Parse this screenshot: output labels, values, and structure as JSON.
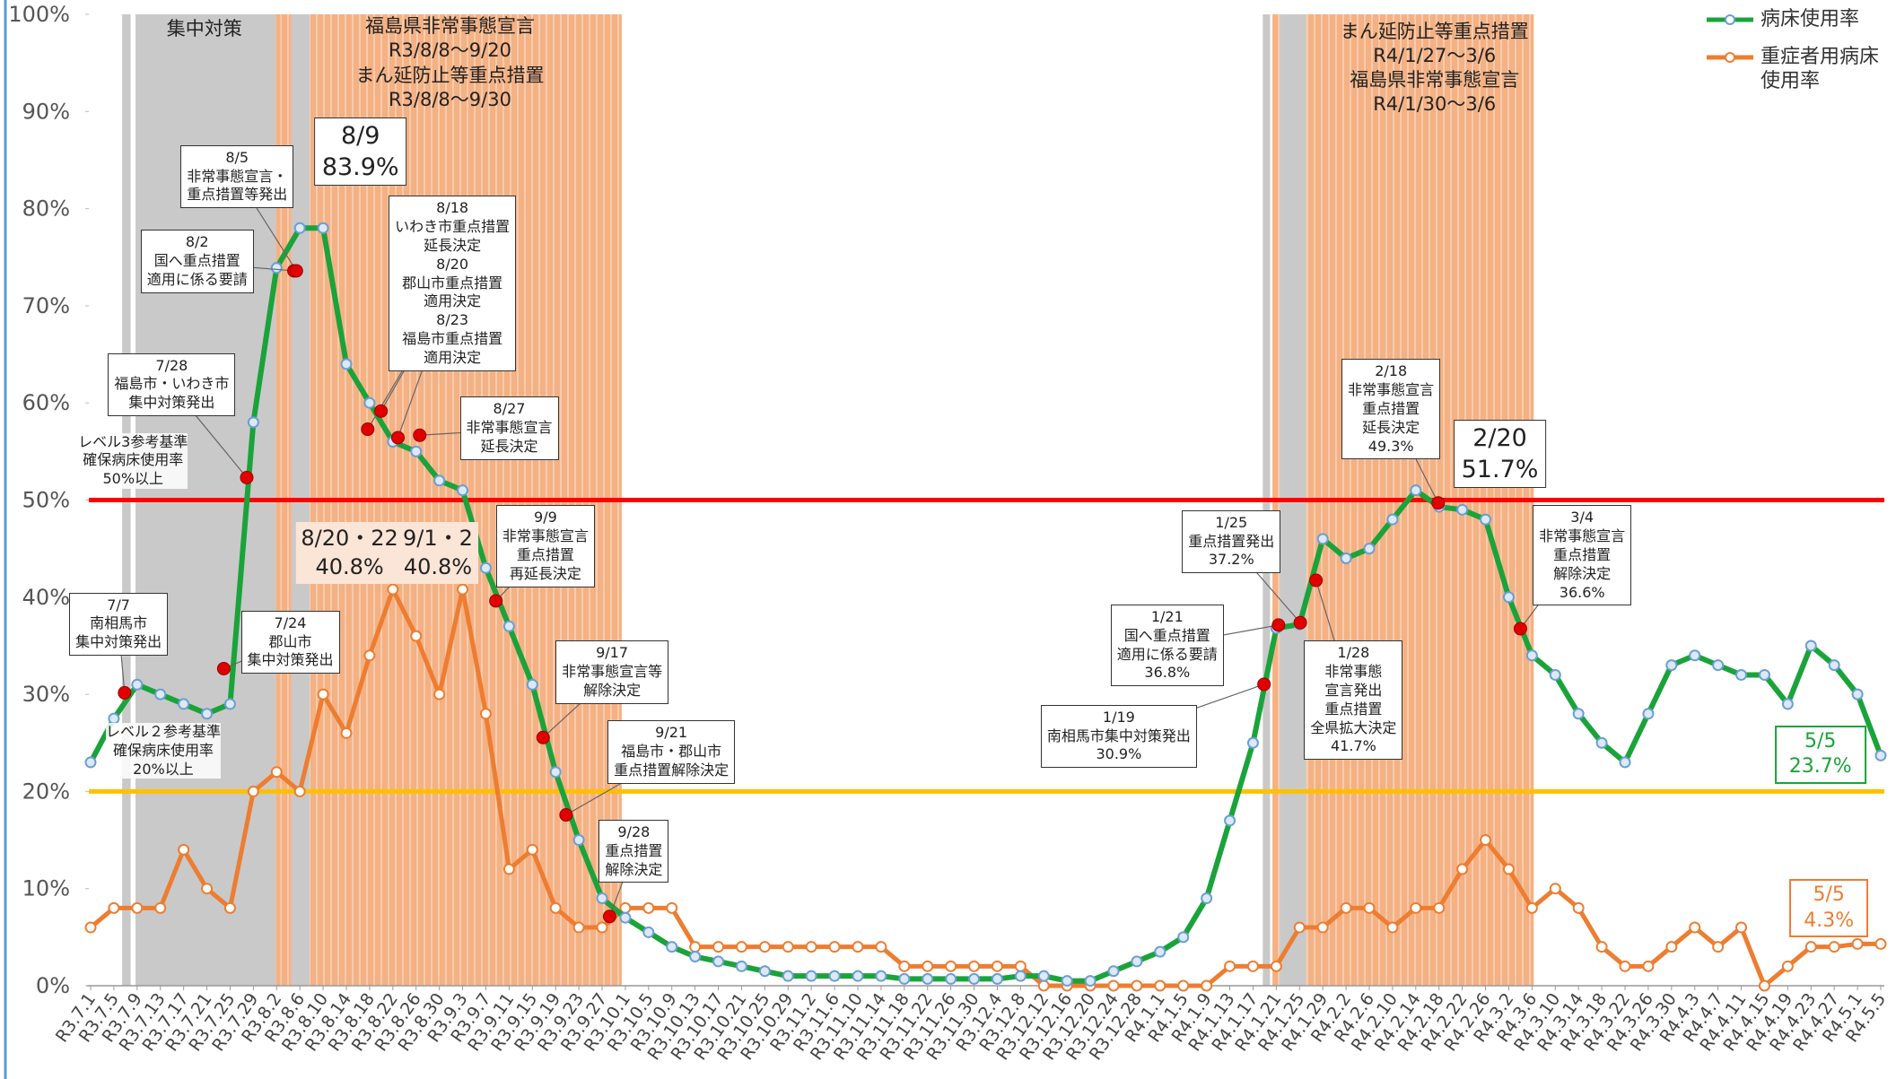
{
  "chart_data": {
    "type": "line",
    "categories": [
      "R3.7.1",
      "R3.7.5",
      "R3.7.9",
      "R3.7.13",
      "R3.7.17",
      "R3.7.21",
      "R3.7.25",
      "R3.7.29",
      "R3.8.2",
      "R3.8.6",
      "R3.8.10",
      "R3.8.14",
      "R3.8.18",
      "R3.8.22",
      "R3.8.26",
      "R3.8.30",
      "R3.9.3",
      "R3.9.7",
      "R3.9.11",
      "R3.9.15",
      "R3.9.19",
      "R3.9.23",
      "R3.9.27",
      "R3.10.1",
      "R3.10.5",
      "R3.10.9",
      "R3.10.13",
      "R3.10.17",
      "R3.10.21",
      "R3.10.25",
      "R3.10.29",
      "R3.11.2",
      "R3.11.6",
      "R3.11.10",
      "R3.11.14",
      "R3.11.18",
      "R3.11.22",
      "R3.11.26",
      "R3.11.30",
      "R3.12.4",
      "R3.12.8",
      "R3.12.12",
      "R3.12.16",
      "R3.12.20",
      "R3.12.24",
      "R3.12.28",
      "R4.1.1",
      "R4.1.5",
      "R4.1.9",
      "R4.1.13",
      "R4.1.17",
      "R4.1.21",
      "R4.1.25",
      "R4.1.29",
      "R4.2.2",
      "R4.2.6",
      "R4.2.10",
      "R4.2.14",
      "R4.2.18",
      "R4.2.22",
      "R4.2.26",
      "R4.3.2",
      "R4.3.6",
      "R4.3.10",
      "R4.3.14",
      "R4.3.18",
      "R4.3.22",
      "R4.3.26",
      "R4.3.30",
      "R4.4.3",
      "R4.4.7",
      "R4.4.11",
      "R4.4.15",
      "R4.4.19",
      "R4.4.23",
      "R4.4.27",
      "R4.5.1",
      "R4.5.5"
    ],
    "series": [
      {
        "name": "病床使用率",
        "color": "#1aa33a",
        "marker_color": "#6a9fd4",
        "values": [
          23,
          27.5,
          31,
          30,
          29,
          28,
          29,
          58,
          73.9,
          78,
          78,
          64,
          60,
          56,
          55,
          52,
          51,
          43,
          37,
          31,
          22,
          15,
          9,
          7,
          5.5,
          4,
          3,
          2.5,
          2,
          1.5,
          1,
          1,
          1,
          1,
          1,
          0.7,
          0.7,
          0.7,
          0.7,
          0.7,
          1,
          1,
          0.5,
          0.5,
          1.5,
          2.5,
          3.5,
          5,
          9,
          17,
          25,
          36.8,
          37.2,
          46,
          44,
          45,
          48,
          51,
          49.3,
          49,
          48,
          40,
          34,
          32,
          28,
          25,
          23,
          28,
          33,
          34,
          33,
          32,
          32,
          29,
          35,
          33,
          30,
          23.7
        ]
      },
      {
        "name": "重症者用病床使用率",
        "color": "#ed7d31",
        "marker_color": "#ed7d31",
        "values": [
          6,
          8,
          8,
          8,
          14,
          10,
          8,
          20,
          22,
          20,
          30,
          26,
          34,
          40.8,
          36,
          30,
          40.8,
          28,
          12,
          14,
          8,
          6,
          6,
          8,
          8,
          8,
          4,
          4,
          4,
          4,
          4,
          4,
          4,
          4,
          4,
          2,
          2,
          2,
          2,
          2,
          2,
          0,
          0,
          0,
          0,
          0,
          0,
          0,
          0,
          2,
          2,
          2,
          6,
          6,
          8,
          8,
          6,
          8,
          8,
          12,
          15,
          12,
          8,
          10,
          8,
          4,
          2,
          2,
          4,
          6,
          4,
          6,
          0,
          2,
          4,
          4,
          4.3,
          4.3
        ]
      }
    ],
    "ylim": [
      0,
      100
    ],
    "yticks": [
      {
        "value": 0,
        "label": "0%"
      },
      {
        "value": 10,
        "label": "10%"
      },
      {
        "value": 20,
        "label": "20%"
      },
      {
        "value": 30,
        "label": "30%"
      },
      {
        "value": 40,
        "label": "40%"
      },
      {
        "value": 50,
        "label": "50%"
      },
      {
        "value": 60,
        "label": "60%"
      },
      {
        "value": 70,
        "label": "70%"
      },
      {
        "value": 80,
        "label": "80%"
      },
      {
        "value": 90,
        "label": "90%"
      },
      {
        "value": 100,
        "label": "100%"
      }
    ],
    "grid": false,
    "reference_lines": [
      {
        "value": 50,
        "color": "#ff0000",
        "lines": [
          "レベル3参考基準",
          "確保病床使用率",
          "50%以上"
        ]
      },
      {
        "value": 20,
        "color": "#ffc000",
        "lines": [
          "レベル２参考基準",
          "確保病床使用率",
          "20%以上"
        ]
      }
    ],
    "periods": [
      {
        "lines": [
          "集中対策"
        ]
      },
      {
        "lines": [
          "福島県非常事態宣言",
          "R3/8/8～9/20",
          "まん延防止等重点措置",
          "R3/8/8～9/30"
        ]
      },
      {
        "lines": [
          "まん延防止等重点措置",
          "R4/1/27～3/6",
          "福島県非常事態宣言",
          "R4/1/30～3/6"
        ]
      }
    ],
    "annotations": [
      {
        "lines": [
          "7/7",
          "南相馬市",
          "集中対策発出"
        ]
      },
      {
        "lines": [
          "7/24",
          "郡山市",
          "集中対策発出"
        ]
      },
      {
        "lines": [
          "7/28",
          "福島市・いわき市",
          "集中対策発出"
        ]
      },
      {
        "lines": [
          "8/2",
          "国へ重点措置",
          "適用に係る要請"
        ]
      },
      {
        "lines": [
          "8/5",
          "非常事態宣言・",
          "重点措置等発出"
        ]
      },
      {
        "lines": [
          "8/9",
          "83.9%"
        ]
      },
      {
        "lines": [
          "8/18",
          "いわき市重点措置",
          "延長決定",
          "8/20",
          "郡山市重点措置",
          "適用決定",
          "8/23",
          "福島市重点措置",
          "適用決定"
        ]
      },
      {
        "lines": [
          "8/27",
          "非常事態宣言",
          "延長決定"
        ]
      },
      {
        "lines": [
          "9/9",
          "非常事態宣言",
          "重点措置",
          "再延長決定"
        ]
      },
      {
        "lines": [
          "9/17",
          "非常事態宣言等",
          "解除決定"
        ]
      },
      {
        "lines": [
          "9/21",
          "福島市・郡山市",
          "重点措置解除決定"
        ]
      },
      {
        "lines": [
          "9/28",
          "重点措置",
          "解除決定"
        ]
      },
      {
        "lines": [
          "8/20・22",
          "40.8%"
        ]
      },
      {
        "lines": [
          "9/1・2",
          "40.8%"
        ]
      },
      {
        "lines": [
          "1/19",
          "南相馬市集中対策発出",
          "30.9%"
        ]
      },
      {
        "lines": [
          "1/21",
          "国へ重点措置",
          "適用に係る要請",
          "36.8%"
        ]
      },
      {
        "lines": [
          "1/25",
          "重点措置発出",
          "37.2%"
        ]
      },
      {
        "lines": [
          "1/28",
          "非常事態",
          "宣言発出",
          "重点措置",
          "全県拡大決定",
          "41.7%"
        ]
      },
      {
        "lines": [
          "2/18",
          "非常事態宣言",
          "重点措置",
          "延長決定",
          "49.3%"
        ]
      },
      {
        "lines": [
          "2/20",
          "51.7%"
        ]
      },
      {
        "lines": [
          "3/4",
          "非常事態宣言",
          "重点措置",
          "解除決定",
          "36.6%"
        ]
      },
      {
        "lines": [
          "5/5",
          "23.7%"
        ]
      },
      {
        "lines": [
          "5/5",
          "4.3%"
        ]
      }
    ]
  }
}
